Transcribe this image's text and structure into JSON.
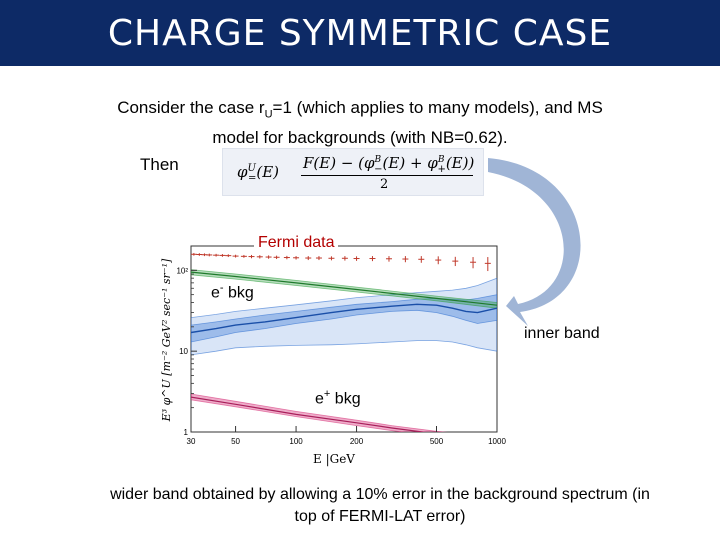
{
  "slide": {
    "title": "CHARGE SYMMETRIC CASE",
    "intro_pre": "Consider the case r",
    "intro_sub": "U",
    "intro_post": "=1 (which applies to many models), and MS model for backgrounds (with NB=0.62).",
    "then_label": "Then",
    "footnote": "wider band obtained by allowing a 10% error in the background spectrum (in top of FERMI-LAT error)"
  },
  "formula": {
    "lhs": "φ",
    "lhs_sup": "U",
    "lhs_sub": "=",
    "lhs_arg": "(E)",
    "numerator": "F(E) − (φ_−^B(E) + φ_+^B(E))",
    "numerator_main": "F(E) − (φ",
    "num_sup1": "B",
    "num_sub1": "−",
    "num_mid": "(E) + φ",
    "num_sup2": "B",
    "num_sub2": "+",
    "num_end": "(E))",
    "denominator": "2"
  },
  "callouts": {
    "fermi": "Fermi data",
    "e_minus_base": "e",
    "e_minus_sup": "-",
    "e_minus_rest": " bkg",
    "e_plus_base": "e",
    "e_plus_sup": "+",
    "e_plus_rest": " bkg",
    "inner_band": "inner band"
  },
  "colors": {
    "title_bg": "#0d2a66",
    "fermi": "#c0392b",
    "electron_bkg": "#2e9e3e",
    "positron_bkg": "#d6337a",
    "signal": "#2f6fd0",
    "arrow": "#8fa8cf"
  },
  "chart_data": {
    "type": "line",
    "xlabel": "E |GeV",
    "xscale": "log",
    "yscale": "log",
    "xlim": [
      30,
      1000
    ],
    "ylim": [
      1,
      200
    ],
    "x_ticks": [
      {
        "value": 30,
        "label": "30"
      },
      {
        "value": 50,
        "label": "50"
      },
      {
        "value": 100,
        "label": "100"
      },
      {
        "value": 200,
        "label": "200"
      },
      {
        "value": 500,
        "label": "500"
      },
      {
        "value": 1000,
        "label": "1000"
      }
    ],
    "y_ticks": [
      {
        "value": 1,
        "label": "1"
      },
      {
        "value": 10,
        "label": "10"
      },
      {
        "value": 100,
        "label": "10²"
      }
    ],
    "series": [
      {
        "key": "fermi",
        "x": [
          31,
          33,
          35,
          37,
          40,
          43,
          46,
          50,
          55,
          60,
          66,
          73,
          80,
          90,
          100,
          115,
          130,
          150,
          175,
          200,
          240,
          290,
          350,
          420,
          510,
          620,
          760,
          900
        ],
        "y": [
          158,
          157,
          156,
          155,
          154,
          153,
          152,
          150,
          149,
          148,
          147,
          146,
          145,
          144,
          143,
          142,
          142,
          141,
          141,
          140,
          140,
          139,
          138,
          137,
          134,
          130,
          126,
          122
        ],
        "err": [
          6,
          6,
          6,
          6,
          6,
          6,
          6,
          6,
          6,
          7,
          7,
          7,
          7,
          7,
          7,
          8,
          8,
          8,
          9,
          9,
          10,
          11,
          12,
          13,
          15,
          17,
          20,
          24
        ]
      },
      {
        "key": "electron_bkg",
        "x": [
          30,
          50,
          100,
          200,
          500,
          1000
        ],
        "y": [
          95,
          84,
          70,
          58,
          45,
          37
        ],
        "band_lo": [
          88,
          78,
          65,
          54,
          42,
          34
        ],
        "band_hi": [
          102,
          90,
          75,
          62,
          48,
          40
        ]
      },
      {
        "key": "signal",
        "x": [
          30,
          40,
          50,
          70,
          100,
          150,
          200,
          300,
          400,
          500,
          600,
          700,
          800,
          1000
        ],
        "y": [
          17,
          19,
          21,
          23,
          26,
          30,
          33,
          36,
          38,
          37,
          34,
          31,
          30,
          34
        ],
        "inner_lo": [
          13,
          15,
          17,
          19,
          22,
          25,
          28,
          31,
          32,
          30,
          27,
          24,
          22,
          24
        ],
        "inner_hi": [
          21,
          23,
          25,
          28,
          31,
          35,
          38,
          41,
          44,
          45,
          44,
          43,
          45,
          50
        ],
        "outer_lo": [
          9,
          10,
          11,
          11.5,
          11.8,
          12,
          12.3,
          13,
          13.5,
          13.5,
          13,
          12,
          11,
          10
        ],
        "outer_hi": [
          26,
          28.5,
          31,
          34,
          37.5,
          42,
          46,
          50,
          53,
          55,
          57,
          60,
          65,
          80
        ]
      },
      {
        "key": "positron_bkg",
        "x": [
          30,
          50,
          100,
          200,
          300,
          500,
          1000
        ],
        "y": [
          2.7,
          2.2,
          1.65,
          1.3,
          1.12,
          0.95,
          0.8
        ],
        "band_lo": [
          2.5,
          2.05,
          1.55,
          1.2,
          1.04,
          0.88,
          0.74
        ],
        "band_hi": [
          2.95,
          2.4,
          1.8,
          1.4,
          1.2,
          1.02,
          0.86
        ]
      }
    ]
  }
}
